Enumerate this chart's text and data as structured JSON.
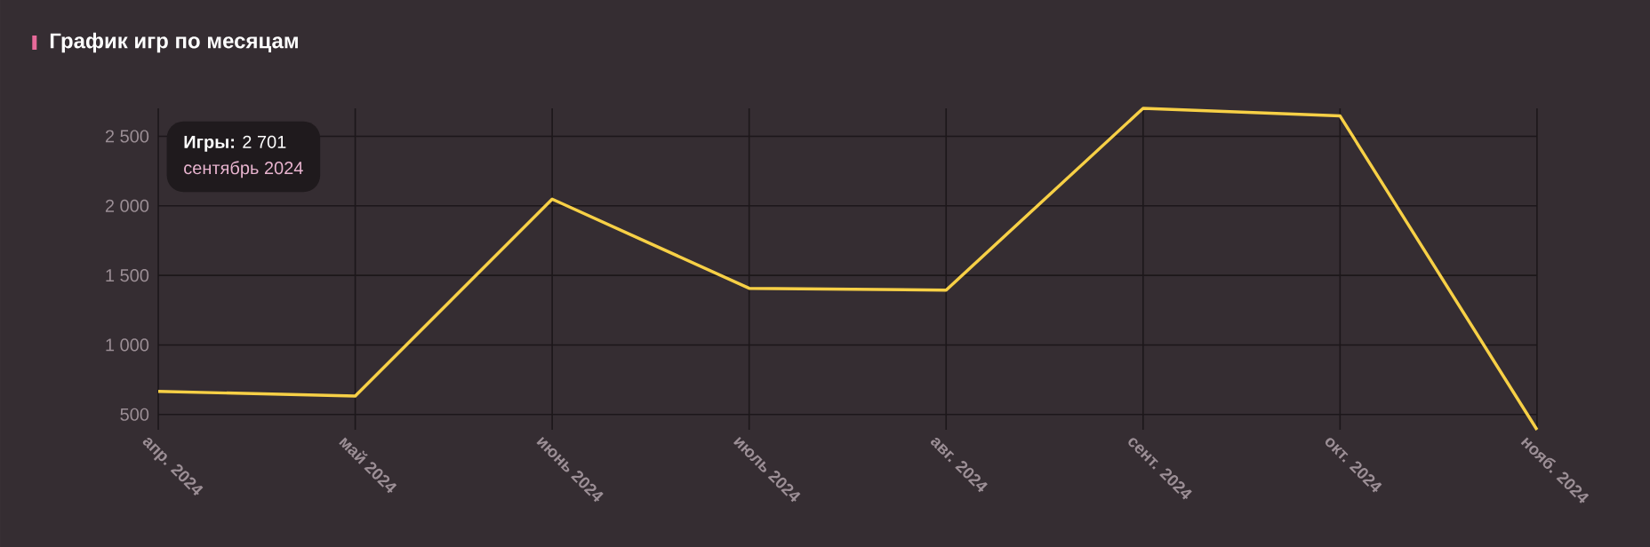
{
  "chart_data": {
    "type": "line",
    "title": "График игр по месяцам",
    "categories": [
      "апр. 2024",
      "май 2024",
      "июнь 2024",
      "июль 2024",
      "авг. 2024",
      "сент. 2024",
      "окт. 2024",
      "нояб. 2024"
    ],
    "series": [
      {
        "color": "#f7d046",
        "values": [
          666,
          632,
          2048,
          1407,
          1394,
          2701,
          2646,
          390
        ]
      }
    ],
    "ylim": [
      390,
      2701
    ],
    "yticks": [
      {
        "value": 500,
        "label": "500"
      },
      {
        "value": 1000,
        "label": "1 000"
      },
      {
        "value": 1500,
        "label": "1 500"
      },
      {
        "value": 2000,
        "label": "2 000"
      },
      {
        "value": 2500,
        "label": "2 500"
      }
    ],
    "grid": true,
    "marker": "none",
    "line_style": "solid",
    "annotations": [
      "**Игры:** 2 701",
      "сентябрь 2024"
    ]
  }
}
